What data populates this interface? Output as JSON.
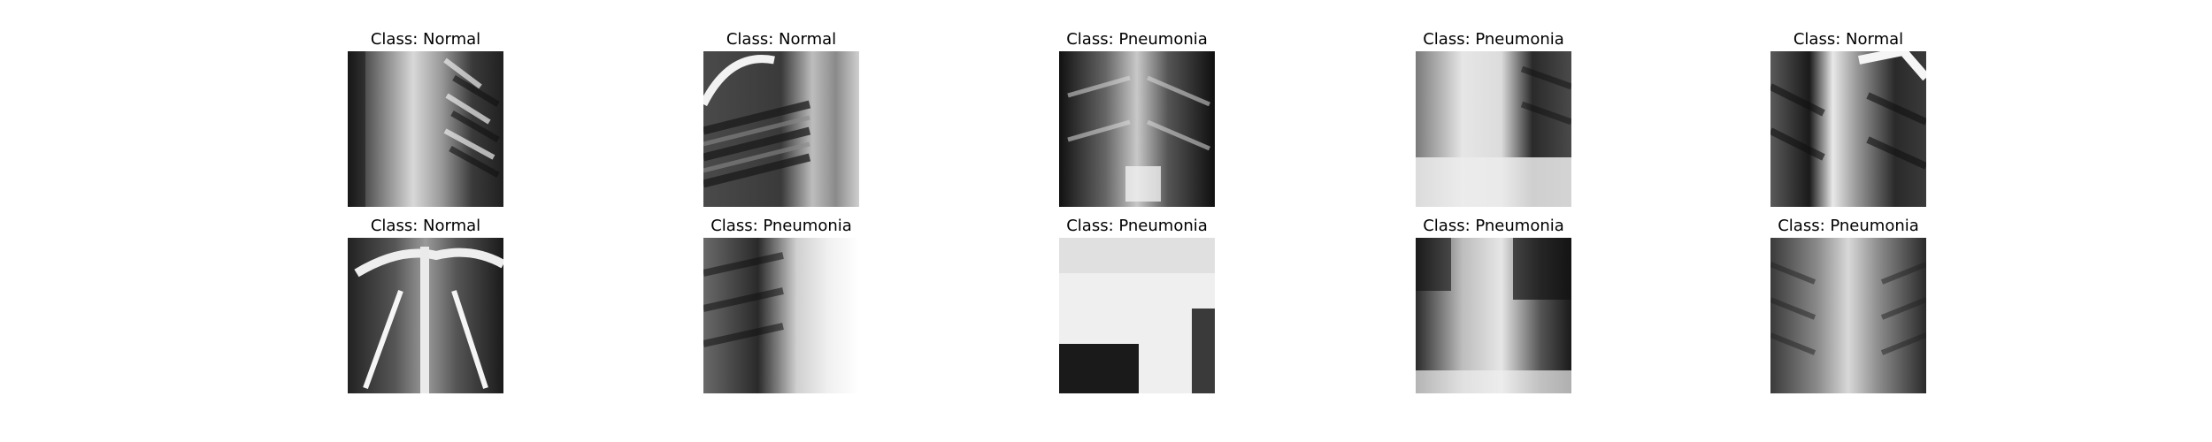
{
  "figure": {
    "samples": [
      {
        "title": "Class: Normal"
      },
      {
        "title": "Class: Normal"
      },
      {
        "title": "Class: Pneumonia"
      },
      {
        "title": "Class: Pneumonia"
      },
      {
        "title": "Class: Normal"
      },
      {
        "title": "Class: Normal"
      },
      {
        "title": "Class: Pneumonia"
      },
      {
        "title": "Class: Pneumonia"
      },
      {
        "title": "Class: Pneumonia"
      },
      {
        "title": "Class: Pneumonia"
      }
    ]
  }
}
